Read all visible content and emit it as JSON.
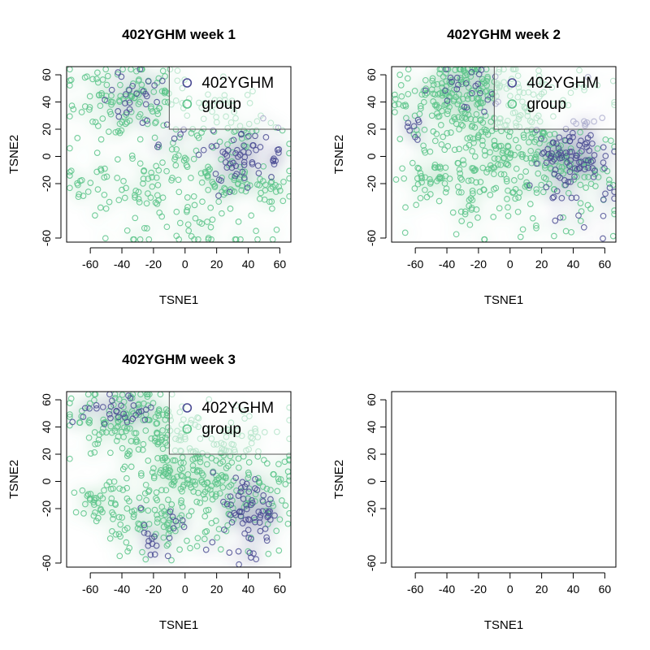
{
  "colors": {
    "subject": "#4A4B93",
    "group": "#5CC48A",
    "subject_fill": "#4A4B93",
    "group_fill": "#6CCB95"
  },
  "chart_data": [
    {
      "type": "scatter",
      "title": "402YGHM week 1",
      "xlabel": "TSNE1",
      "ylabel": "TSNE2",
      "xlim": [
        -75,
        67
      ],
      "ylim": [
        -63,
        66
      ],
      "xticks": [
        -60,
        -40,
        -20,
        0,
        20,
        40,
        60
      ],
      "yticks": [
        -60,
        -20,
        0,
        20,
        40,
        60
      ],
      "legend": {
        "placement": "top-right",
        "entries": [
          "402YGHM",
          "group"
        ]
      },
      "series": [
        {
          "name": "402YGHM",
          "clusters": [
            [
              38,
              2,
              10,
              10,
              45
            ],
            [
              -30,
              45,
              12,
              12,
              25
            ],
            [
              -10,
              12,
              6,
              6,
              6
            ],
            [
              28,
              -12,
              10,
              10,
              15
            ]
          ]
        },
        {
          "name": "group",
          "clusters": [
            [
              -35,
              45,
              20,
              15,
              120
            ],
            [
              -55,
              -20,
              15,
              12,
              35
            ],
            [
              10,
              -20,
              30,
              25,
              180
            ],
            [
              30,
              30,
              15,
              12,
              40
            ],
            [
              55,
              -22,
              6,
              6,
              12
            ]
          ]
        }
      ]
    },
    {
      "type": "scatter",
      "title": "402YGHM week 2",
      "xlabel": "TSNE1",
      "ylabel": "TSNE2",
      "xlim": [
        -75,
        67
      ],
      "ylim": [
        -63,
        66
      ],
      "xticks": [
        -60,
        -40,
        -20,
        0,
        20,
        40,
        60
      ],
      "yticks": [
        -60,
        -20,
        0,
        20,
        40,
        60
      ],
      "legend": {
        "placement": "top-right",
        "entries": [
          "402YGHM",
          "group"
        ]
      },
      "series": [
        {
          "name": "402YGHM",
          "clusters": [
            [
              38,
              -5,
              12,
              18,
              110
            ],
            [
              -25,
              50,
              12,
              8,
              25
            ],
            [
              -60,
              20,
              4,
              5,
              8
            ]
          ]
        },
        {
          "name": "group",
          "clusters": [
            [
              -35,
              45,
              20,
              15,
              140
            ],
            [
              -50,
              -18,
              10,
              8,
              40
            ],
            [
              5,
              0,
              30,
              25,
              320
            ],
            [
              0,
              50,
              25,
              10,
              60
            ],
            [
              55,
              -20,
              6,
              6,
              10
            ]
          ]
        }
      ]
    },
    {
      "type": "scatter",
      "title": "402YGHM week 3",
      "xlabel": "TSNE1",
      "ylabel": "TSNE2",
      "xlim": [
        -75,
        67
      ],
      "ylim": [
        -63,
        66
      ],
      "xticks": [
        -60,
        -40,
        -20,
        0,
        20,
        40,
        60
      ],
      "yticks": [
        -60,
        -20,
        0,
        20,
        40,
        60
      ],
      "legend": {
        "placement": "top-right",
        "entries": [
          "402YGHM",
          "group"
        ]
      },
      "series": [
        {
          "name": "402YGHM",
          "clusters": [
            [
              -40,
              50,
              12,
              8,
              30
            ],
            [
              40,
              -25,
              10,
              15,
              70
            ],
            [
              -20,
              -40,
              10,
              10,
              20
            ]
          ]
        },
        {
          "name": "group",
          "clusters": [
            [
              -35,
              45,
              20,
              12,
              130
            ],
            [
              -50,
              -15,
              10,
              8,
              35
            ],
            [
              10,
              5,
              30,
              22,
              320
            ],
            [
              -20,
              -35,
              15,
              12,
              50
            ],
            [
              55,
              -20,
              5,
              5,
              8
            ]
          ]
        }
      ]
    },
    {
      "type": "scatter",
      "title": "",
      "xlabel": "TSNE1",
      "ylabel": "TSNE2",
      "xlim": [
        -75,
        67
      ],
      "ylim": [
        -63,
        66
      ],
      "xticks": [
        -60,
        -40,
        -20,
        0,
        20,
        40,
        60
      ],
      "yticks": [
        -60,
        -20,
        0,
        20,
        40,
        60
      ],
      "legend": null,
      "series": []
    }
  ]
}
